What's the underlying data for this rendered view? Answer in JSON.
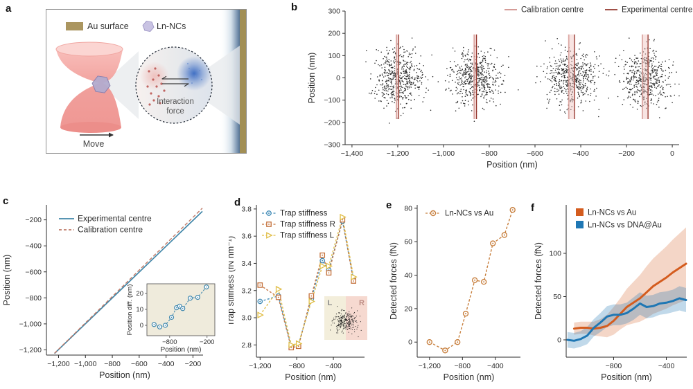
{
  "panel_labels": {
    "a": "a",
    "b": "b",
    "c": "c",
    "d": "d",
    "e": "e",
    "f": "f"
  },
  "panel_a": {
    "legend": [
      {
        "label": "Au surface",
        "swatch_color": "#ab9660",
        "swatch_shape": "rect"
      },
      {
        "label": "Ln-NCs",
        "swatch_color": "#c9c3e3",
        "swatch_shape": "hexagon"
      }
    ],
    "interaction_label_line1": "Interaction",
    "interaction_label_line2": "force",
    "move_label": "Move",
    "colors": {
      "trap_pink": "#f0968f",
      "gold": "#a28f55",
      "blue_glow": "#2f63c0",
      "particle": "#b3abce",
      "red_dots": "#bb5752"
    }
  },
  "chart_data": [
    {
      "id": "b",
      "type": "scatter",
      "xlabel": "Position (nm)",
      "ylabel": "Position (nm)",
      "xlim": [
        -1430,
        30
      ],
      "ylim": [
        -300,
        300
      ],
      "xticks": [
        {
          "v": -1400,
          "label": "−1,400"
        },
        {
          "v": -1200,
          "label": "−1,200"
        },
        {
          "v": -1000,
          "label": "−1,000"
        },
        {
          "v": -800,
          "label": "−800"
        },
        {
          "v": -600,
          "label": "−600"
        },
        {
          "v": -400,
          "label": "−400"
        },
        {
          "v": -200,
          "label": "−200"
        },
        {
          "v": 0,
          "label": "0"
        }
      ],
      "yticks": [
        {
          "v": 300,
          "label": "300"
        },
        {
          "v": 200,
          "label": "200"
        },
        {
          "v": 100,
          "label": "100"
        },
        {
          "v": 0,
          "label": "0"
        },
        {
          "v": -100,
          "label": "−100"
        },
        {
          "v": -200,
          "label": "−200"
        },
        {
          "v": -300,
          "label": "−300"
        }
      ],
      "legend": [
        {
          "label": "Calibration centre",
          "color": "#cf8d88"
        },
        {
          "label": "Experimental centre",
          "color": "#93362d"
        }
      ],
      "point_color": "#161616",
      "centre_line_y_range": [
        -185,
        195
      ],
      "clusters": [
        {
          "x_center": -1200,
          "y_center": 0,
          "sigma_x": 55,
          "sigma_y": 62,
          "n": 520,
          "calibration_x": -1205,
          "experimental_x": -1197
        },
        {
          "x_center": -860,
          "y_center": 0,
          "sigma_x": 55,
          "sigma_y": 62,
          "n": 520,
          "calibration_x": -866,
          "experimental_x": -856
        },
        {
          "x_center": -440,
          "y_center": 0,
          "sigma_x": 55,
          "sigma_y": 62,
          "n": 520,
          "calibration_x": -452,
          "experimental_x": -428
        },
        {
          "x_center": -118,
          "y_center": 0,
          "sigma_x": 52,
          "sigma_y": 60,
          "n": 500,
          "calibration_x": -130,
          "experimental_x": -106
        }
      ]
    },
    {
      "id": "c",
      "type": "line",
      "xlabel": "Position (nm)",
      "ylabel": "Position (nm)",
      "xlim": [
        -1290,
        -125
      ],
      "ylim": [
        -1240,
        -85
      ],
      "xticks": [
        {
          "v": -1200,
          "label": "−1,200"
        },
        {
          "v": -1000,
          "label": "−1,000"
        },
        {
          "v": -800,
          "label": "−800"
        },
        {
          "v": -600,
          "label": "−600"
        },
        {
          "v": -400,
          "label": "−400"
        },
        {
          "v": -200,
          "label": "−200"
        }
      ],
      "yticks": [
        {
          "v": -200,
          "label": "−200"
        },
        {
          "v": -400,
          "label": "−400"
        },
        {
          "v": -600,
          "label": "−600"
        },
        {
          "v": -800,
          "label": "−800"
        },
        {
          "v": -1000,
          "label": "−1,000"
        },
        {
          "v": -1200,
          "label": "−1,200"
        }
      ],
      "series": [
        {
          "name": "Experimental centre",
          "color": "#4186a8",
          "style": "solid",
          "points": [
            [
              -1230,
              -1228
            ],
            [
              -130,
              -135
            ]
          ]
        },
        {
          "name": "Calibration centre",
          "color": "#bf7a68",
          "style": "dashed",
          "points": [
            [
              -1230,
              -1226
            ],
            [
              -130,
              -110
            ]
          ]
        }
      ],
      "inset": {
        "bg": "#efebdc",
        "xlabel": "Position (nm)",
        "ylabel": "Position diff. (nm)",
        "xlim": [
          -1165,
          -75
        ],
        "ylim": [
          -6.5,
          26
        ],
        "xticks": [
          {
            "v": -800,
            "label": "−800"
          },
          {
            "v": -200,
            "label": "−200"
          }
        ],
        "yticks": [
          {
            "v": 0,
            "label": "0"
          },
          {
            "v": 10,
            "label": "10"
          },
          {
            "v": 20,
            "label": "20"
          }
        ],
        "series_color": "#3f87ad",
        "points": [
          [
            -1050,
            0.5
          ],
          [
            -960,
            -1
          ],
          [
            -870,
            0
          ],
          [
            -770,
            5
          ],
          [
            -690,
            11
          ],
          [
            -640,
            12
          ],
          [
            -590,
            10.5
          ],
          [
            -470,
            17
          ],
          [
            -350,
            17.5
          ],
          [
            -210,
            24
          ]
        ]
      }
    },
    {
      "id": "d",
      "type": "line",
      "xlabel": "Position (nm)",
      "ylabel": "Trap stiffness (fN nm⁻¹)",
      "xlim": [
        -1240,
        -60
      ],
      "ylim": [
        2.71,
        3.83
      ],
      "xticks": [
        {
          "v": -1200,
          "label": "−1,200"
        },
        {
          "v": -800,
          "label": "−800"
        },
        {
          "v": -400,
          "label": "−400"
        }
      ],
      "yticks": [
        {
          "v": 2.8,
          "label": "2.8"
        },
        {
          "v": 3.0,
          "label": "3.0"
        },
        {
          "v": 3.2,
          "label": "3.2"
        },
        {
          "v": 3.4,
          "label": "3.4"
        },
        {
          "v": 3.6,
          "label": "3.6"
        },
        {
          "v": 3.8,
          "label": "3.8"
        }
      ],
      "x": [
        -1200,
        -1000,
        -860,
        -780,
        -640,
        -520,
        -450,
        -300,
        -180
      ],
      "series": [
        {
          "name": "Trap stiffness",
          "marker": "circle",
          "color": "#3e89b5",
          "values": [
            3.12,
            3.16,
            2.79,
            2.8,
            3.14,
            3.42,
            3.35,
            3.71,
            3.28
          ]
        },
        {
          "name": "Trap stiffness R",
          "marker": "square",
          "color": "#c4703a",
          "values": [
            3.24,
            3.15,
            2.78,
            2.79,
            3.16,
            3.46,
            3.33,
            3.72,
            3.27
          ]
        },
        {
          "name": "Trap stiffness L",
          "marker": "triangle",
          "color": "#e0bd45",
          "values": [
            3.02,
            3.21,
            2.8,
            2.81,
            3.12,
            3.38,
            3.38,
            3.74,
            3.3
          ]
        }
      ],
      "inset": {
        "left_label": "L",
        "right_label": "R",
        "left_bg": "#f3eedb",
        "right_bg": "#f6d9d0",
        "n_points": 260
      }
    },
    {
      "id": "e",
      "type": "line",
      "xlabel": "Position (nm)",
      "ylabel": "Detected forces (fN)",
      "xlim": [
        -1350,
        -95
      ],
      "ylim": [
        -9,
        82
      ],
      "xticks": [
        {
          "v": -1200,
          "label": "−1,200"
        },
        {
          "v": -800,
          "label": "−800"
        },
        {
          "v": -400,
          "label": "−400"
        }
      ],
      "yticks": [
        {
          "v": 0,
          "label": "0"
        },
        {
          "v": 20,
          "label": "20"
        },
        {
          "v": 40,
          "label": "40"
        },
        {
          "v": 60,
          "label": "60"
        },
        {
          "v": 80,
          "label": "80"
        }
      ],
      "series": [
        {
          "name": "Ln-NCs vs Au",
          "marker": "circle",
          "color": "#c8803f",
          "style": "dashed",
          "points": [
            [
              -1200,
              0
            ],
            [
              -1010,
              -5
            ],
            [
              -860,
              0
            ],
            [
              -760,
              17
            ],
            [
              -650,
              37
            ],
            [
              -540,
              36
            ],
            [
              -430,
              59
            ],
            [
              -290,
              64
            ],
            [
              -190,
              79
            ]
          ]
        }
      ]
    },
    {
      "id": "f",
      "type": "line-band",
      "xlabel": "Position (nm)",
      "ylabel": "Detected forces (fN)",
      "xlim": [
        -1160,
        -245
      ],
      "ylim": [
        -20,
        156
      ],
      "xticks": [
        {
          "v": -800,
          "label": "−800"
        },
        {
          "v": -400,
          "label": "−400"
        }
      ],
      "yticks": [
        {
          "v": 0,
          "label": "0"
        },
        {
          "v": 50,
          "label": "50"
        },
        {
          "v": 100,
          "label": "100"
        }
      ],
      "series": [
        {
          "name": "Ln-NCs vs Au",
          "color": "#d45c1e",
          "band_opacity": 0.25,
          "x": [
            -1100,
            -1050,
            -1000,
            -950,
            -900,
            -850,
            -800,
            -750,
            -700,
            -650,
            -600,
            -550,
            -500,
            -450,
            -400,
            -350,
            -300,
            -250
          ],
          "values": [
            13,
            14,
            14,
            13,
            14,
            16,
            22,
            30,
            38,
            43,
            48,
            55,
            62,
            67,
            72,
            78,
            83,
            88
          ],
          "band": [
            7,
            7,
            7,
            8,
            10,
            13,
            16,
            18,
            21,
            24,
            27,
            30,
            32,
            34,
            36,
            38,
            40,
            42
          ]
        },
        {
          "name": "Ln-NCs vs DNA@Au",
          "color": "#1f77b4",
          "band_opacity": 0.28,
          "x": [
            -1150,
            -1100,
            -1050,
            -1000,
            -950,
            -900,
            -850,
            -800,
            -750,
            -700,
            -650,
            -600,
            -550,
            -500,
            -450,
            -400,
            -350,
            -300,
            -250
          ],
          "values": [
            0,
            -1,
            1,
            5,
            14,
            20,
            27,
            29,
            29,
            31,
            36,
            42,
            38,
            39,
            42,
            43,
            45,
            48,
            46
          ],
          "band": [
            9,
            9,
            9,
            10,
            10,
            11,
            12,
            12,
            12,
            12,
            13,
            13,
            13,
            13,
            13,
            13,
            13,
            14,
            14
          ]
        }
      ]
    }
  ]
}
